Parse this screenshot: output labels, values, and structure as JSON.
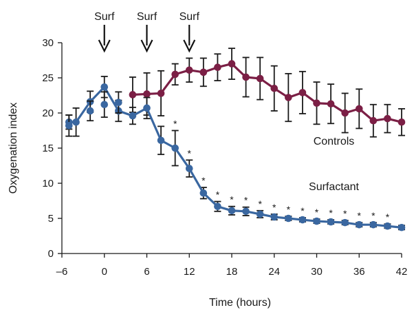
{
  "chart_data": {
    "type": "line",
    "title": "",
    "xlabel": "Time (hours)",
    "ylabel": "Oxygenation index",
    "xlim": [
      -6,
      42
    ],
    "ylim": [
      0,
      30
    ],
    "xticks": [
      "–6",
      "0",
      "6",
      "12",
      "18",
      "24",
      "30",
      "36",
      "42"
    ],
    "xtick_values": [
      -6,
      0,
      6,
      12,
      18,
      24,
      30,
      36,
      42
    ],
    "yticks": [
      "0",
      "5",
      "10",
      "15",
      "20",
      "25",
      "30"
    ],
    "ytick_values": [
      0,
      5,
      10,
      15,
      20,
      25,
      30
    ],
    "grid": false,
    "series": [
      {
        "name": "Controls",
        "color": "#7b1f45",
        "x": [
          4,
          6,
          8,
          10,
          12,
          14,
          16,
          18,
          20,
          22,
          24,
          26,
          28,
          30,
          32,
          34,
          36,
          38,
          40,
          42
        ],
        "y": [
          22.6,
          22.7,
          22.8,
          25.5,
          26.1,
          25.8,
          26.5,
          27.0,
          25.1,
          24.9,
          23.5,
          22.2,
          22.9,
          21.4,
          21.3,
          20.0,
          20.6,
          18.9,
          19.2,
          18.7
        ],
        "err": [
          2.5,
          3.0,
          3.2,
          1.5,
          1.7,
          2.0,
          1.9,
          2.2,
          2.8,
          3.0,
          3.2,
          3.4,
          3.0,
          3.0,
          2.8,
          2.8,
          2.8,
          2.3,
          2.0,
          1.9
        ]
      },
      {
        "name": "Surfactant",
        "color": "#3a67a0",
        "x": [
          -5,
          -4,
          -2,
          0,
          2,
          4,
          6,
          8,
          10,
          12,
          14,
          16,
          18,
          20,
          22,
          24,
          26,
          28,
          30,
          32,
          34,
          36,
          38,
          40,
          42
        ],
        "y": [
          18.7,
          18.7,
          21.6,
          23.7,
          20.3,
          19.6,
          20.7,
          16.1,
          15.0,
          12.1,
          8.6,
          6.7,
          6.1,
          6.0,
          5.6,
          5.2,
          5.0,
          4.8,
          4.6,
          4.5,
          4.4,
          4.1,
          4.1,
          3.9,
          3.7
        ],
        "err": [
          1.0,
          2.0,
          1.5,
          1.5,
          1.5,
          1.2,
          1.5,
          2.0,
          2.5,
          1.2,
          0.8,
          0.7,
          0.6,
          0.6,
          0.5,
          0.4,
          0.3,
          0.3,
          0.3,
          0.3,
          0.3,
          0.3,
          0.3,
          0.3,
          0.3
        ]
      }
    ],
    "extra_points": {
      "series": "Surfactant",
      "x": [
        -5,
        -2,
        0,
        2
      ],
      "y": [
        18.2,
        20.3,
        21.2,
        21.5
      ],
      "err": [
        1.5,
        1.4,
        1.8,
        1.5
      ]
    },
    "significance": {
      "symbol": "*",
      "x": [
        10,
        12,
        14,
        16,
        18,
        20,
        22,
        24,
        26,
        28,
        30,
        32,
        34,
        36,
        38,
        40
      ]
    },
    "annotations": [
      {
        "text": "Surf",
        "x": 0
      },
      {
        "text": "Surf",
        "x": 6
      },
      {
        "text": "Surf",
        "x": 12
      }
    ],
    "series_labels": [
      {
        "text": "Controls",
        "anchor_x": 30,
        "anchor_y": 15.5
      },
      {
        "text": "Surfactant",
        "anchor_x": 30,
        "anchor_y": 9.0
      }
    ]
  }
}
